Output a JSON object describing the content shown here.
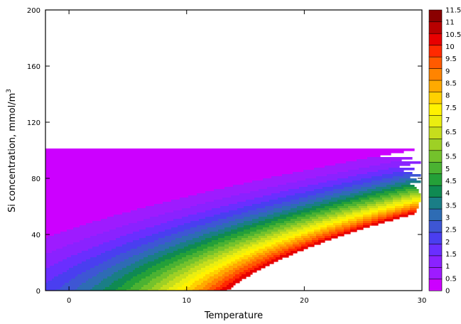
{
  "chart_data": {
    "type": "filled_contour",
    "xlabel": "Temperature",
    "ylabel": "Si concentration, mmol/m",
    "ylabel_superscript": "3",
    "xlim": [
      -2,
      30
    ],
    "ylim": [
      0,
      200
    ],
    "xticks": [
      0,
      10,
      20,
      30
    ],
    "yticks": [
      0,
      40,
      80,
      120,
      160,
      200
    ],
    "field": {
      "description_of_values": "value is 0 at (x=-2,y=55) and at (x=8.5,y=200), increasing toward high temperature and low Si; maximum about 11 near (30,0)",
      "max_value": 11.0
    },
    "colorbar": {
      "levels": [
        0,
        0.5,
        1,
        1.5,
        2,
        2.5,
        3,
        3.5,
        4,
        4.5,
        5,
        5.5,
        6,
        6.5,
        7,
        7.5,
        8,
        8.5,
        9,
        9.5,
        10,
        10.5,
        11,
        11.5
      ],
      "labels": [
        "0",
        "0.5",
        "1",
        "1.5",
        "2",
        "2.5",
        "3",
        "3.5",
        "4",
        "4.5",
        "5",
        "5.5",
        "6",
        "6.5",
        "7",
        "7.5",
        "8",
        "8.5",
        "9",
        "9.5",
        "10",
        "10.5",
        "11",
        "11.5"
      ],
      "colors": [
        "#cc00ff",
        "#9e1bff",
        "#8a22ff",
        "#6a2eff",
        "#4a3ef0",
        "#3e56d4",
        "#2e6cb4",
        "#1a7e86",
        "#0f8a52",
        "#24a038",
        "#4bb232",
        "#74c22c",
        "#9ed025",
        "#c6de1c",
        "#eaee10",
        "#fff200",
        "#ffd100",
        "#ffaa00",
        "#ff8400",
        "#ff5a00",
        "#ff2a00",
        "#e80000",
        "#b80000",
        "#8a0000"
      ]
    },
    "grid": false
  }
}
